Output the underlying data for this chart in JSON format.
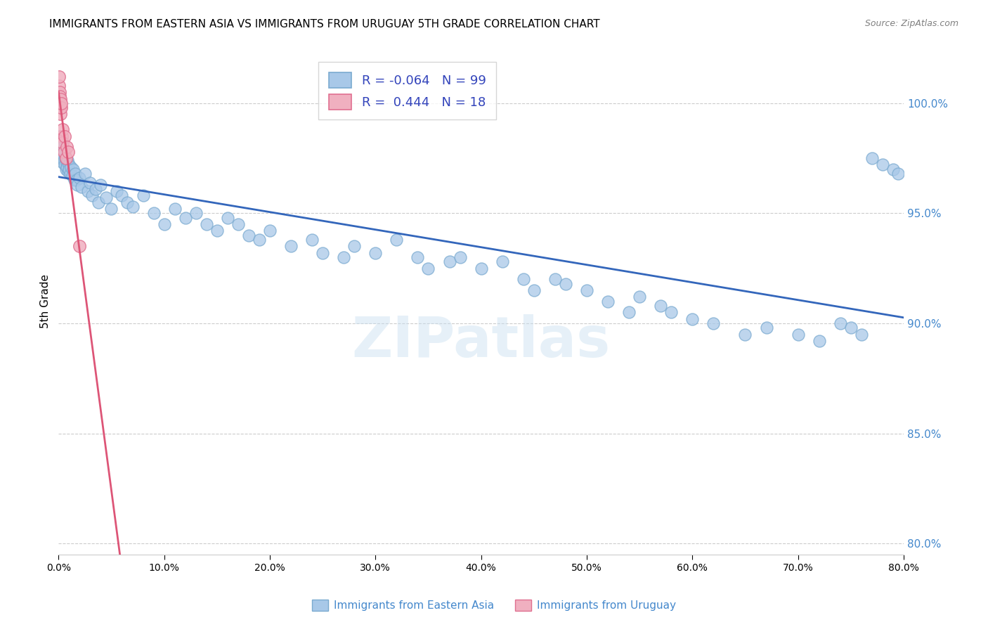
{
  "title": "IMMIGRANTS FROM EASTERN ASIA VS IMMIGRANTS FROM URUGUAY 5TH GRADE CORRELATION CHART",
  "source": "Source: ZipAtlas.com",
  "ylabel": "5th Grade",
  "legend_entry1": {
    "label": "Immigrants from Eastern Asia",
    "R": "-0.064",
    "N": "99",
    "color": "#a8c8e8"
  },
  "legend_entry2": {
    "label": "Immigrants from Uruguay",
    "R": "0.444",
    "N": "18",
    "color": "#f0b0c0"
  },
  "blue_line_color": "#3366bb",
  "pink_line_color": "#dd5577",
  "scatter_blue_color": "#a8c8e8",
  "scatter_blue_edge": "#7aaad0",
  "scatter_pink_color": "#f0b0c0",
  "scatter_pink_edge": "#e07090",
  "watermark": "ZIPatlas",
  "grid_color": "#cccccc",
  "right_tick_color": "#4488cc",
  "xlim": [
    0.0,
    80.0
  ],
  "ylim": [
    79.5,
    102.5
  ],
  "y_right_ticks": [
    80.0,
    85.0,
    90.0,
    95.0,
    100.0
  ],
  "blue_scatter_x": [
    0.05,
    0.08,
    0.1,
    0.12,
    0.15,
    0.18,
    0.2,
    0.22,
    0.25,
    0.28,
    0.3,
    0.32,
    0.35,
    0.38,
    0.4,
    0.45,
    0.5,
    0.55,
    0.6,
    0.65,
    0.7,
    0.75,
    0.8,
    0.85,
    0.9,
    0.95,
    1.0,
    1.1,
    1.2,
    1.3,
    1.4,
    1.5,
    1.6,
    1.7,
    1.8,
    2.0,
    2.2,
    2.5,
    2.8,
    3.0,
    3.2,
    3.5,
    3.8,
    4.0,
    4.5,
    5.0,
    5.5,
    6.0,
    6.5,
    7.0,
    8.0,
    9.0,
    10.0,
    11.0,
    12.0,
    13.0,
    14.0,
    15.0,
    16.0,
    17.0,
    18.0,
    19.0,
    20.0,
    22.0,
    24.0,
    25.0,
    27.0,
    28.0,
    30.0,
    32.0,
    34.0,
    35.0,
    37.0,
    38.0,
    40.0,
    42.0,
    44.0,
    45.0,
    47.0,
    48.0,
    50.0,
    52.0,
    54.0,
    55.0,
    57.0,
    58.0,
    60.0,
    62.0,
    65.0,
    67.0,
    70.0,
    72.0,
    74.0,
    75.0,
    76.0,
    77.0,
    78.0,
    79.0,
    79.5
  ],
  "blue_scatter_y": [
    98.2,
    98.5,
    98.0,
    97.8,
    98.3,
    97.5,
    98.1,
    97.9,
    98.0,
    97.7,
    98.2,
    97.5,
    97.8,
    98.0,
    97.3,
    97.6,
    97.4,
    97.8,
    97.2,
    97.5,
    97.0,
    97.3,
    97.1,
    97.4,
    96.9,
    97.2,
    97.0,
    96.8,
    97.1,
    96.7,
    97.0,
    96.5,
    96.8,
    96.5,
    96.3,
    96.6,
    96.2,
    96.8,
    96.0,
    96.4,
    95.8,
    96.1,
    95.5,
    96.3,
    95.7,
    95.2,
    96.0,
    95.8,
    95.5,
    95.3,
    95.8,
    95.0,
    94.5,
    95.2,
    94.8,
    95.0,
    94.5,
    94.2,
    94.8,
    94.5,
    94.0,
    93.8,
    94.2,
    93.5,
    93.8,
    93.2,
    93.0,
    93.5,
    93.2,
    93.8,
    93.0,
    92.5,
    92.8,
    93.0,
    92.5,
    92.8,
    92.0,
    91.5,
    92.0,
    91.8,
    91.5,
    91.0,
    90.5,
    91.2,
    90.8,
    90.5,
    90.2,
    90.0,
    89.5,
    89.8,
    89.5,
    89.2,
    90.0,
    89.8,
    89.5,
    97.5,
    97.2,
    97.0,
    96.8
  ],
  "pink_scatter_x": [
    0.05,
    0.08,
    0.1,
    0.12,
    0.15,
    0.18,
    0.2,
    0.25,
    0.3,
    0.35,
    0.4,
    0.5,
    0.6,
    0.7,
    0.8,
    0.9,
    2.0,
    0.22
  ],
  "pink_scatter_y": [
    100.8,
    101.2,
    100.5,
    100.3,
    99.8,
    100.2,
    99.5,
    99.8,
    98.5,
    98.8,
    98.2,
    97.8,
    98.5,
    97.5,
    98.0,
    97.8,
    93.5,
    100.0
  ]
}
